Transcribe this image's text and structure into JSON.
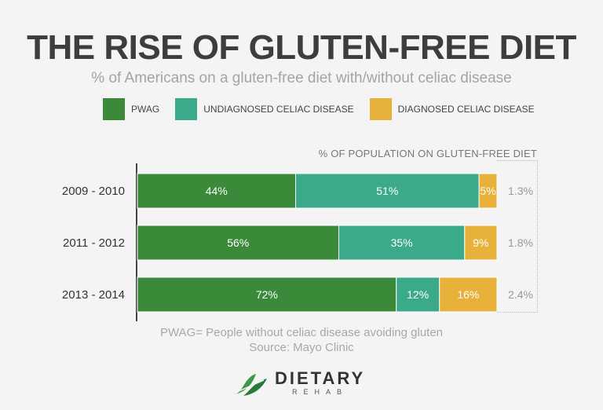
{
  "title": "THE RISE OF GLUTEN-FREE DIET",
  "subtitle": "% of Americans on a gluten-free diet with/without celiac disease",
  "legend": [
    {
      "label": "PWAG",
      "color": "#3a8a3a"
    },
    {
      "label": "UNDIAGNOSED CELIAC DISEASE",
      "color": "#3aaa8a"
    },
    {
      "label": "DIAGNOSED CELIAC DISEASE",
      "color": "#e8b23a"
    }
  ],
  "population_label": "% OF POPULATION ON GLUTEN-FREE DIET",
  "chart_data": {
    "type": "bar",
    "orientation": "horizontal",
    "stacked": true,
    "title": "THE RISE OF GLUTEN-FREE DIET",
    "categories": [
      "2009 - 2010",
      "2011 - 2012",
      "2013 - 2014"
    ],
    "series": [
      {
        "name": "PWAG",
        "values": [
          44,
          56,
          72
        ],
        "labels": [
          "44%",
          "56%",
          "72%"
        ],
        "color": "#3a8a3a"
      },
      {
        "name": "UNDIAGNOSED CELIAC DISEASE",
        "values": [
          51,
          35,
          12
        ],
        "labels": [
          "51%",
          "35%",
          "12%"
        ],
        "color": "#3aaa8a"
      },
      {
        "name": "DIAGNOSED CELIAC DISEASE",
        "values": [
          5,
          9,
          16
        ],
        "labels": [
          "5%",
          "9%",
          "16%"
        ],
        "color": "#e8b23a"
      }
    ],
    "population_percent": [
      "1.3%",
      "1.8%",
      "2.4%"
    ],
    "xlim": [
      0,
      100
    ]
  },
  "footnote": "PWAG= People without celiac disease avoiding gluten",
  "source": "Source: Mayo Clinic",
  "logo": {
    "main": "DIETARY",
    "sub": "REHAB"
  }
}
